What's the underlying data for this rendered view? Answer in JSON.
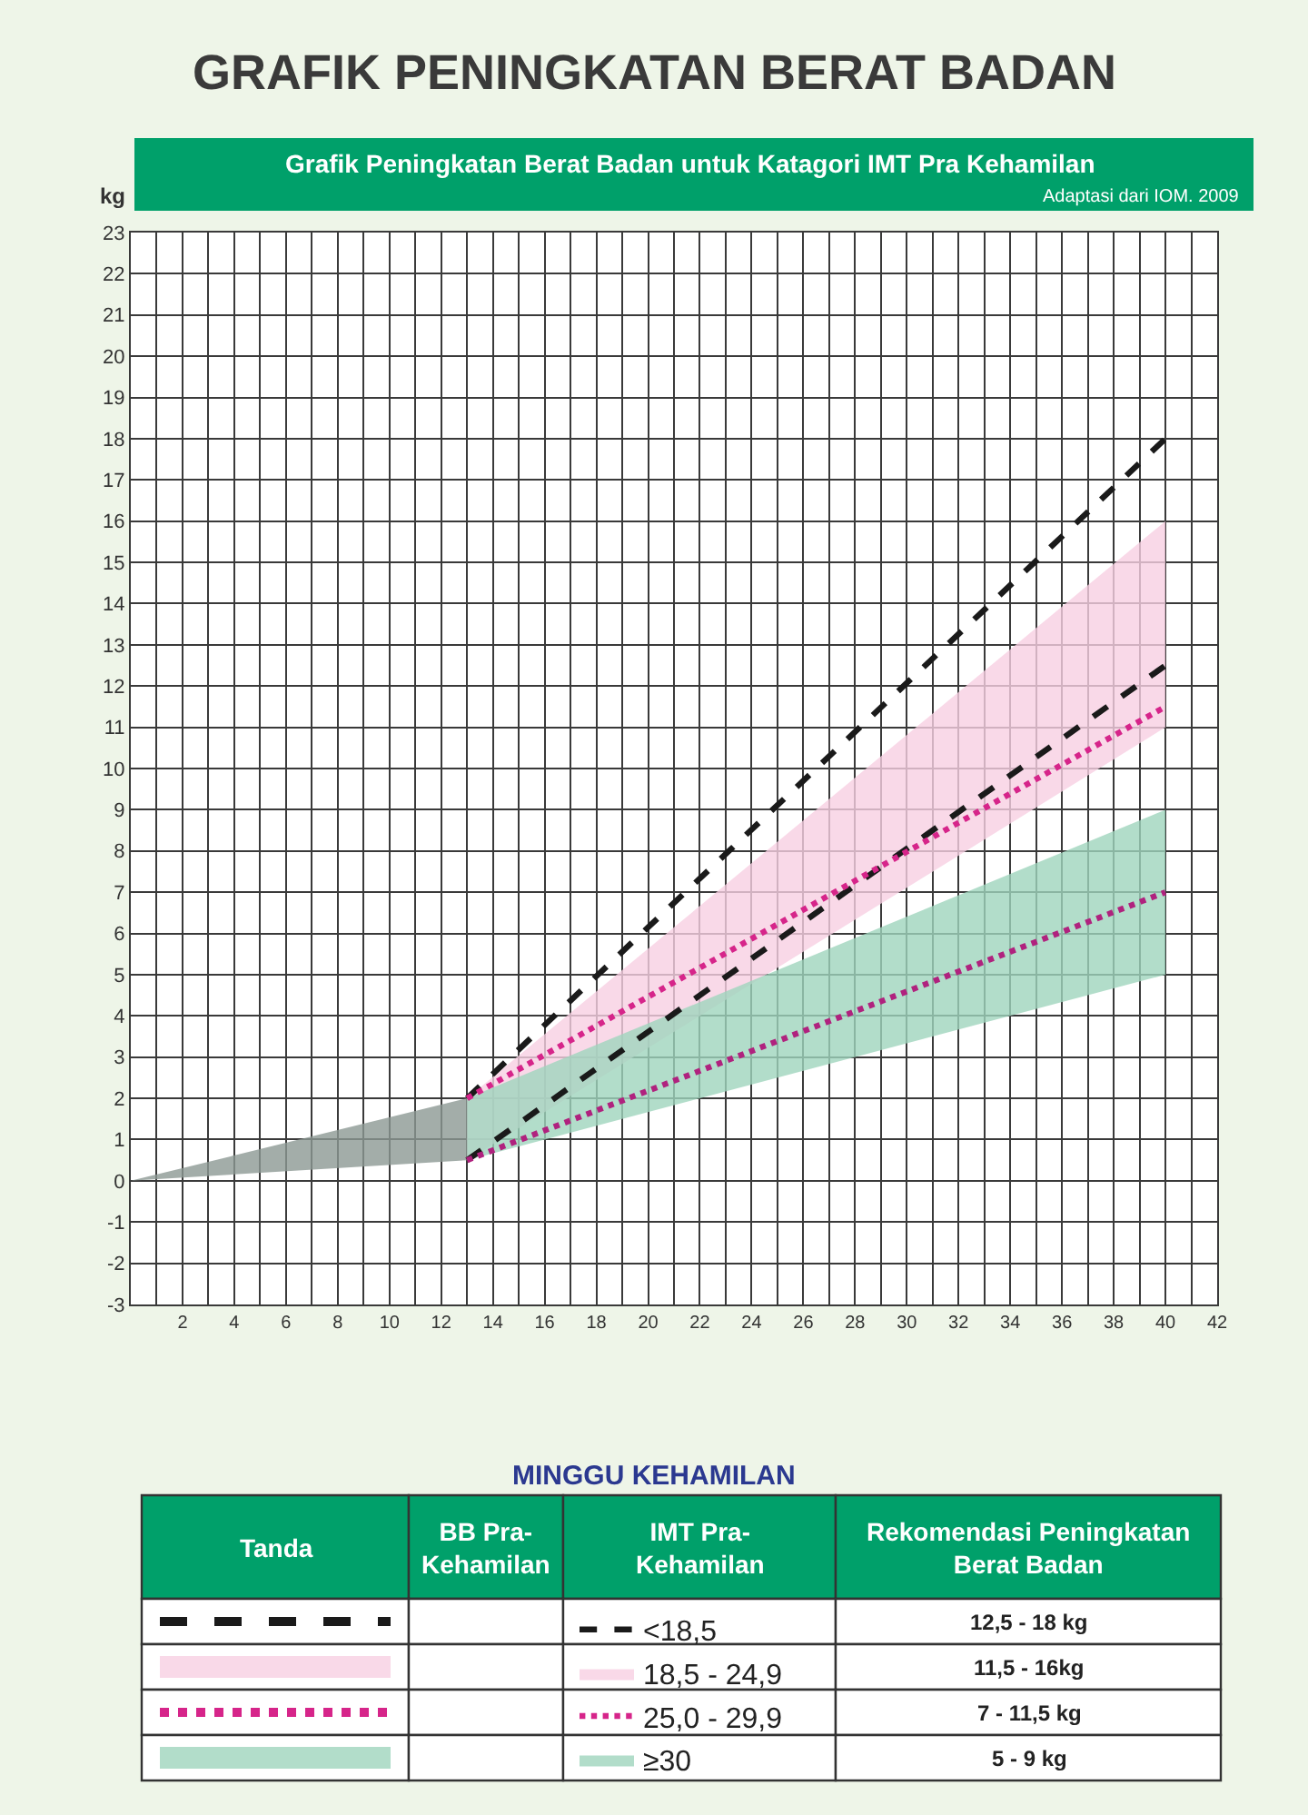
{
  "chart_data": {
    "type": "line",
    "title": "GRAFIK PENINGKATAN BERAT BADAN",
    "subtitle": "Grafik Peningkatan Berat Badan untuk Katagori IMT Pra Kehamilan",
    "ylabel": "kg",
    "xlabel": "MINGGU KEHAMILAN",
    "annotations": [
      "Adaptasi dari IOM. 2009",
      "Tanda",
      "BB Pra-Kehamilan",
      "IMT Pra-Kehamilan",
      "Rekomendasi Peningkatan Berat Badan",
      "12,5 - 18 kg",
      "11,5 - 16kg",
      "7 - 11,5 kg",
      "5 - 9 kg"
    ],
    "series": [
      {
        "color": "#8c9994",
        "x": [
          0,
          13
        ],
        "values": [
          null,
          null
        ],
        "lower": [
          0,
          0.5
        ],
        "upper": [
          0,
          2
        ]
      },
      {
        "name": "<18,5",
        "color": "#1a1a1a",
        "x": [
          13,
          40
        ],
        "values": [
          2,
          18
        ],
        "line_style": "dashed"
      },
      {
        "color": "#1a1a1a",
        "x": [
          13,
          40
        ],
        "values": [
          0.5,
          12.5
        ],
        "line_style": "dashed"
      },
      {
        "name": "18,5 - 24,9",
        "color": "#f8cfe2",
        "x": [
          13,
          40
        ],
        "values": [
          null,
          null
        ],
        "lower": [
          0.5,
          11
        ],
        "upper": [
          2,
          16
        ]
      },
      {
        "name": "25,0 - 29,9",
        "color": "#d6258a",
        "x": [
          13,
          40
        ],
        "values": [
          2,
          11.5
        ],
        "line_style": "dotted"
      },
      {
        "color": "#b0227e",
        "x": [
          13,
          40
        ],
        "values": [
          0.5,
          7
        ],
        "line_style": "dotted"
      },
      {
        "name": "≥30",
        "color": "#9fd5bd",
        "x": [
          13,
          40
        ],
        "values": [
          null,
          null
        ],
        "lower": [
          0.5,
          5
        ],
        "upper": [
          2,
          9
        ]
      }
    ],
    "xlim": [
      0,
      42
    ],
    "xticks": [
      {
        "value": 1,
        "label": null
      },
      2,
      {
        "value": 3,
        "label": null
      },
      4,
      {
        "value": 5,
        "label": null
      },
      6,
      {
        "value": 7,
        "label": null
      },
      8,
      {
        "value": 9,
        "label": null
      },
      10,
      {
        "value": 11,
        "label": null
      },
      12,
      {
        "value": 13,
        "label": null
      },
      14,
      {
        "value": 15,
        "label": null
      },
      16,
      {
        "value": 17,
        "label": null
      },
      18,
      {
        "value": 19,
        "label": null
      },
      20,
      {
        "value": 21,
        "label": null
      },
      22,
      {
        "value": 23,
        "label": null
      },
      24,
      {
        "value": 25,
        "label": null
      },
      26,
      {
        "value": 27,
        "label": null
      },
      28,
      {
        "value": 29,
        "label": null
      },
      30,
      {
        "value": 31,
        "label": null
      },
      32,
      {
        "value": 33,
        "label": null
      },
      34,
      {
        "value": 35,
        "label": null
      },
      36,
      {
        "value": 37,
        "label": null
      },
      38,
      {
        "value": 39,
        "label": null
      },
      40,
      {
        "value": 41,
        "label": null
      },
      42
    ],
    "ylim": [
      -3,
      23
    ],
    "yticks": [
      -3,
      -2,
      -1,
      0,
      1,
      2,
      3,
      4,
      5,
      6,
      7,
      8,
      9,
      10,
      11,
      12,
      13,
      14,
      15,
      16,
      17,
      18,
      19,
      20,
      21,
      22,
      23
    ],
    "grid": true,
    "legend": "bottom"
  }
}
